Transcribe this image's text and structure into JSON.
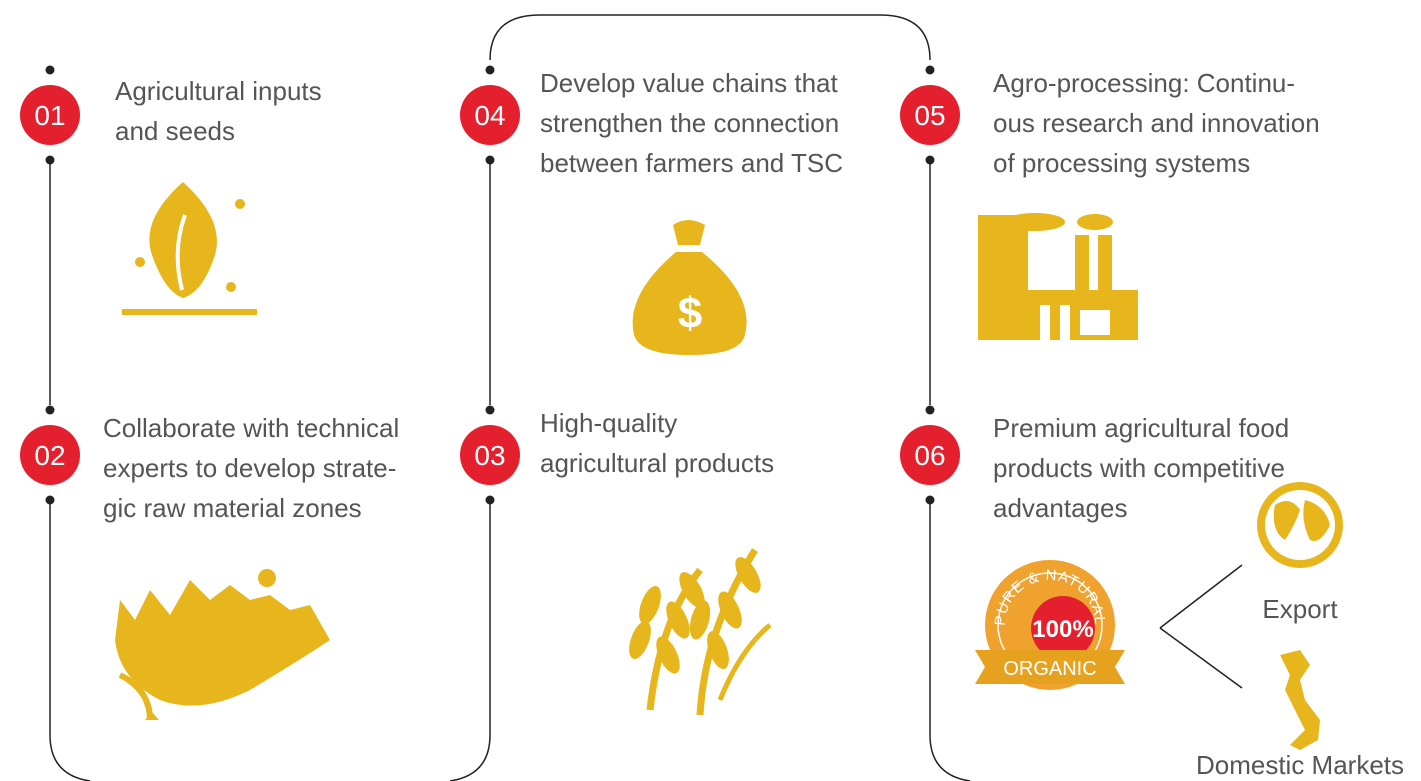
{
  "steps": [
    {
      "number": "01",
      "lines": [
        "Agricultural inputs",
        "and seeds"
      ]
    },
    {
      "number": "02",
      "lines": [
        "Collaborate with technical",
        "experts to develop strate-",
        "gic raw material zones"
      ]
    },
    {
      "number": "03",
      "lines": [
        "High-quality",
        "agricultural products"
      ]
    },
    {
      "number": "04",
      "lines": [
        "Develop value chains that",
        "strengthen the connection",
        "between farmers and TSC"
      ]
    },
    {
      "number": "05",
      "lines": [
        "Agro-processing: Continu-",
        "ous research and innovation",
        "of processing systems"
      ]
    },
    {
      "number": "06",
      "lines": [
        "Premium agricultural food",
        "products with competitive",
        "advantages"
      ]
    }
  ],
  "badge": {
    "top": "PURE & NATURAL",
    "center": "100%",
    "bottom": "ORGANIC"
  },
  "markets": [
    "Export",
    "Domestic Markets"
  ]
}
